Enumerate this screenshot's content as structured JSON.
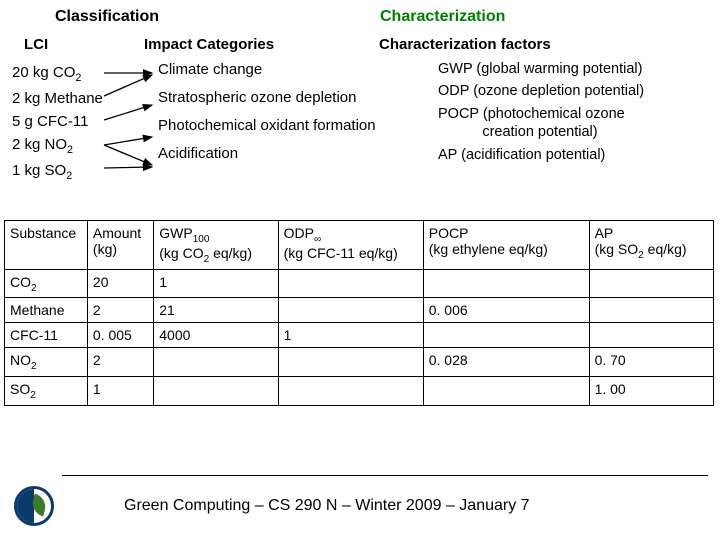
{
  "headers": {
    "classification": "Classification",
    "characterization": "Characterization",
    "lci": "LCI",
    "impact_categories": "Impact Categories",
    "char_factors": "Characterization factors"
  },
  "lci_items": [
    {
      "amount": "20 kg",
      "chem_base": "CO",
      "chem_sub": "2"
    },
    {
      "amount": "2 kg",
      "chem_base": "Methane",
      "chem_sub": ""
    },
    {
      "amount": "5 g",
      "chem_base": "CFC-11",
      "chem_sub": ""
    },
    {
      "amount": "2 kg",
      "chem_base": "NO",
      "chem_sub": "2"
    },
    {
      "amount": "1 kg",
      "chem_base": "SO",
      "chem_sub": "2"
    }
  ],
  "impacts": [
    "Climate change",
    "Stratospheric ozone depletion",
    "Photochemical oxidant formation",
    "Acidification"
  ],
  "factors": [
    {
      "lines": [
        "GWP (global warming potential)"
      ]
    },
    {
      "lines": [
        "ODP (ozone depletion potential)"
      ]
    },
    {
      "lines": [
        "POCP (photochemical ozone",
        "           creation potential)"
      ]
    },
    {
      "lines": [
        "AP (acidification potential)"
      ]
    }
  ],
  "table": {
    "headers": {
      "substance": "Substance",
      "amount_l1": "Amount",
      "amount_l2": "(kg)",
      "gwp_l1_a": "GWP",
      "gwp_l1_sub": "100",
      "gwp_l2_a": "(kg CO",
      "gwp_l2_sub": "2",
      "gwp_l2_b": " eq/kg)",
      "odp_l1_a": "ODP",
      "odp_l1_sub": "∞",
      "odp_l2": "(kg CFC-11 eq/kg)",
      "pocp_l1": "POCP",
      "pocp_l2": "(kg ethylene eq/kg)",
      "ap_l1": "AP",
      "ap_l2_a": "(kg SO",
      "ap_l2_sub": "2",
      "ap_l2_b": " eq/kg)"
    },
    "rows": [
      {
        "sub_base": "CO",
        "sub_sub": "2",
        "amount": "20",
        "gwp": "1",
        "odp": "",
        "pocp": "",
        "ap": ""
      },
      {
        "sub_base": "Methane",
        "sub_sub": "",
        "amount": "2",
        "gwp": "21",
        "odp": "",
        "pocp": "0. 006",
        "ap": ""
      },
      {
        "sub_base": "CFC-11",
        "sub_sub": "",
        "amount": "0. 005",
        "gwp": "4000",
        "odp": "1",
        "pocp": "",
        "ap": ""
      },
      {
        "sub_base": "NO",
        "sub_sub": "2",
        "amount": "2",
        "gwp": "",
        "odp": "",
        "pocp": "0. 028",
        "ap": "0. 70"
      },
      {
        "sub_base": "SO",
        "sub_sub": "2",
        "amount": "1",
        "gwp": "",
        "odp": "",
        "pocp": "",
        "ap": "1. 00"
      }
    ]
  },
  "footer": "Green Computing – CS 290 N – Winter 2009 – January 7",
  "colors": {
    "green_header": "#008000",
    "logo_dark": "#083a6b",
    "leaf": "#3a7a2a"
  }
}
